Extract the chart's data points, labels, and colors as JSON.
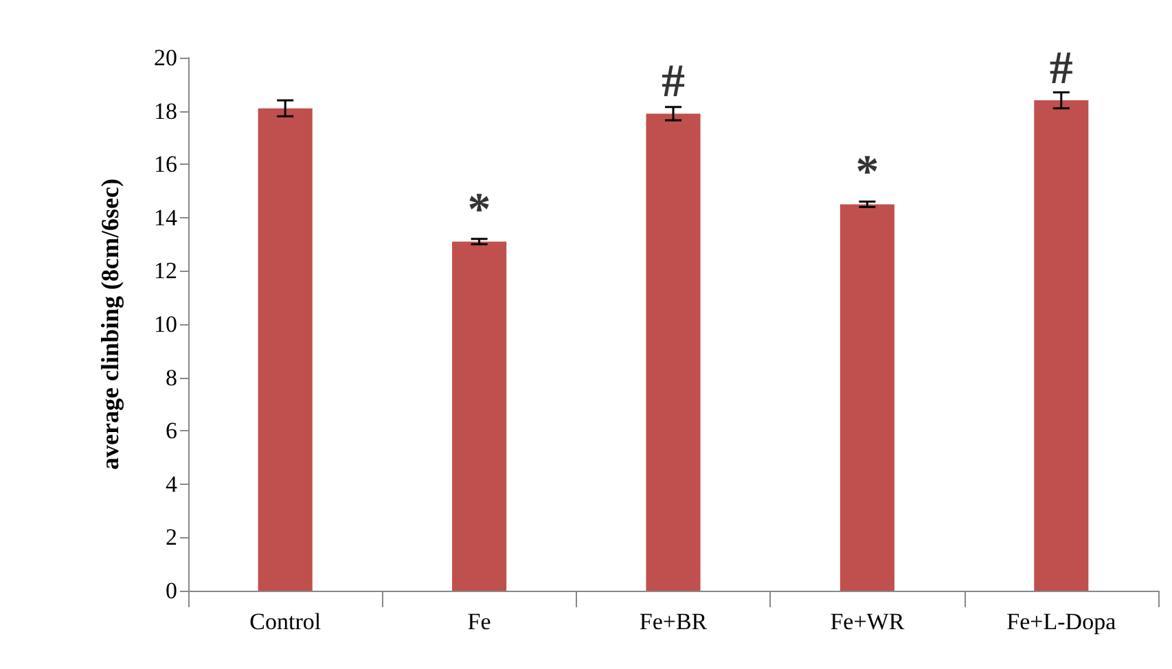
{
  "chart_data": {
    "type": "bar",
    "ylabel": "average clinbing (8cm/6sec)",
    "categories": [
      "Control",
      "Fe",
      "Fe+BR",
      "Fe+WR",
      "Fe+L-Dopa"
    ],
    "values": [
      18.1,
      13.1,
      17.9,
      14.5,
      18.4
    ],
    "errors": [
      0.3,
      0.1,
      0.25,
      0.1,
      0.3
    ],
    "color": "#c0504d",
    "ylim": [
      0,
      20
    ],
    "yticks": [
      0,
      2,
      4,
      6,
      8,
      10,
      12,
      14,
      16,
      18,
      20
    ],
    "grid": false,
    "annotations": [
      {
        "text": "*",
        "x": "Fe",
        "y": 13.1
      },
      {
        "text": "#",
        "x": "Fe+BR",
        "y": 17.9
      },
      {
        "text": "*",
        "x": "Fe+WR",
        "y": 14.5
      },
      {
        "text": "#",
        "x": "Fe+L-Dopa",
        "y": 18.4
      }
    ]
  }
}
